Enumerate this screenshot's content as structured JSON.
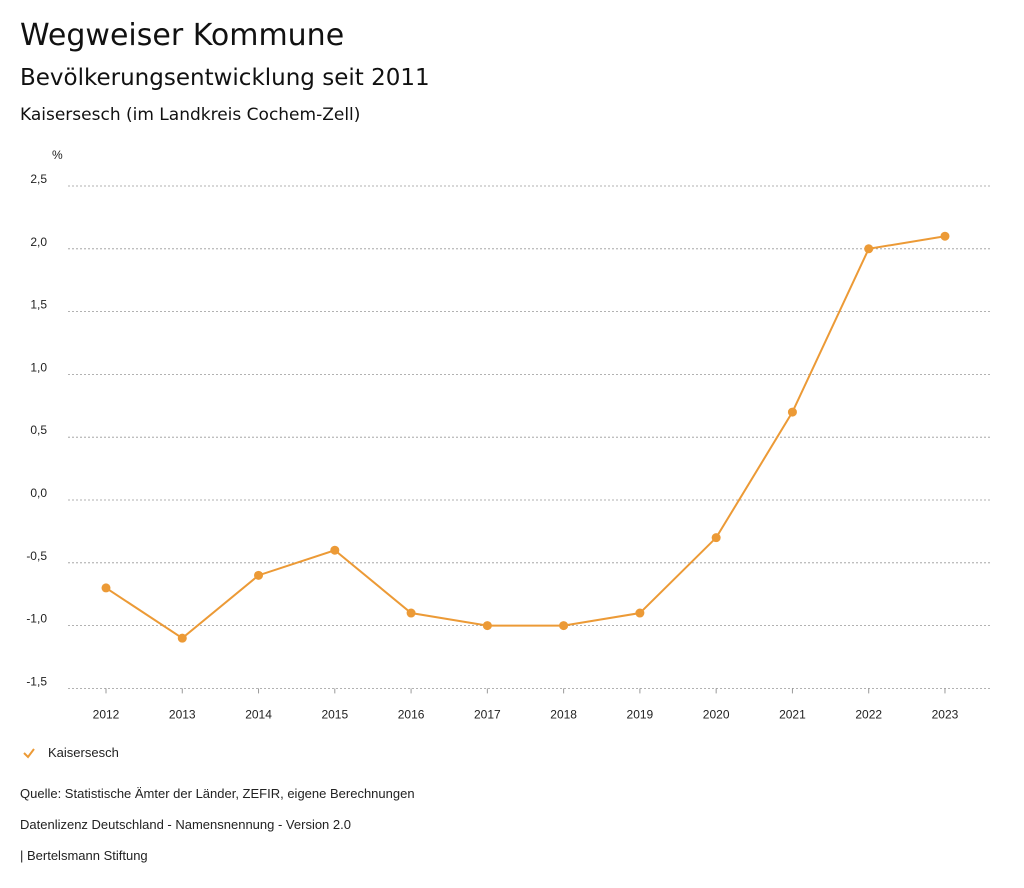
{
  "header": {
    "title": "Wegweiser Kommune",
    "subtitle": "Bevölkerungsentwicklung seit 2011",
    "region": "Kaisersesch (im Landkreis Cochem-Zell)"
  },
  "chart_data": {
    "type": "line",
    "ylabel": "%",
    "x": [
      "2012",
      "2013",
      "2014",
      "2015",
      "2016",
      "2017",
      "2018",
      "2019",
      "2020",
      "2021",
      "2022",
      "2023"
    ],
    "series": [
      {
        "name": "Kaisersesch",
        "color": "#ec9a36",
        "values": [
          -0.7,
          -1.1,
          -0.6,
          -0.4,
          -0.9,
          -1.0,
          -1.0,
          -0.9,
          -0.3,
          0.7,
          2.0,
          2.1
        ]
      }
    ],
    "ylim": [
      -1.5,
      2.5
    ],
    "yticks": [
      2.5,
      2.0,
      1.5,
      1.0,
      0.5,
      0.0,
      -0.5,
      -1.0,
      -1.5
    ],
    "ytick_labels": [
      "2,5",
      "2,0",
      "1,5",
      "1,0",
      "0,5",
      "0,0",
      "-0,5",
      "-1,0",
      "-1,5"
    ],
    "grid": true,
    "legend": "bottom-left"
  },
  "footer": {
    "source": "Quelle: Statistische Ämter der Länder, ZEFIR, eigene Berechnungen",
    "license": "Datenlizenz Deutschland - Namensnennung - Version 2.0",
    "credit": "| Bertelsmann Stiftung"
  }
}
